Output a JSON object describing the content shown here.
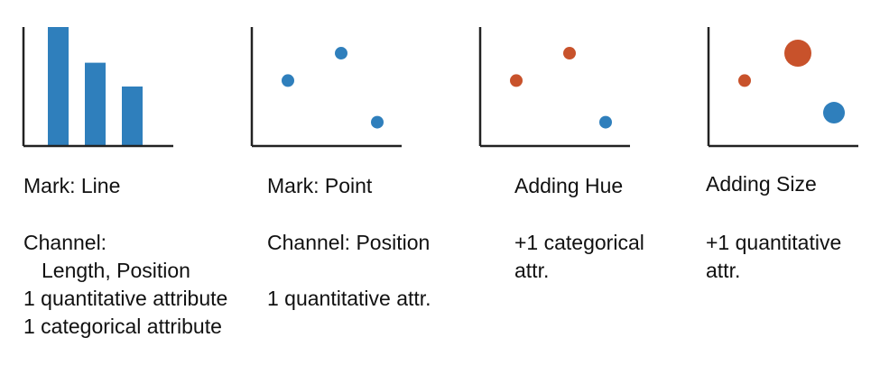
{
  "colors": {
    "blue": "#2f7fbc",
    "orange": "#c8522b",
    "axis": "#222222"
  },
  "panels": [
    {
      "id": "line",
      "mark_label": "Mark: Line",
      "lines": [
        "Channel:",
        "Length, Position",
        "1 quantitative attribute",
        "1 categorical attribute"
      ],
      "bars": [
        1.0,
        0.7,
        0.5
      ]
    },
    {
      "id": "point",
      "mark_label": "Mark: Point",
      "lines": [
        "Channel: Position",
        "1 quantitative attr."
      ],
      "points": [
        {
          "x": 0.25,
          "y": 0.55,
          "color": "blue",
          "size": "small"
        },
        {
          "x": 0.6,
          "y": 0.78,
          "color": "blue",
          "size": "small"
        },
        {
          "x": 0.85,
          "y": 0.2,
          "color": "blue",
          "size": "small"
        }
      ]
    },
    {
      "id": "hue",
      "mark_label": "Adding Hue",
      "lines": [
        "+1 categorical",
        "attr."
      ],
      "points": [
        {
          "x": 0.25,
          "y": 0.55,
          "color": "orange",
          "size": "small"
        },
        {
          "x": 0.6,
          "y": 0.78,
          "color": "orange",
          "size": "small"
        },
        {
          "x": 0.85,
          "y": 0.2,
          "color": "blue",
          "size": "small"
        }
      ]
    },
    {
      "id": "size",
      "mark_label": "Adding Size",
      "lines": [
        "+1 quantitative",
        "attr."
      ],
      "points": [
        {
          "x": 0.25,
          "y": 0.55,
          "color": "orange",
          "size": "small"
        },
        {
          "x": 0.6,
          "y": 0.78,
          "color": "orange",
          "size": "large"
        },
        {
          "x": 0.85,
          "y": 0.28,
          "color": "blue",
          "size": "medium"
        }
      ]
    }
  ]
}
